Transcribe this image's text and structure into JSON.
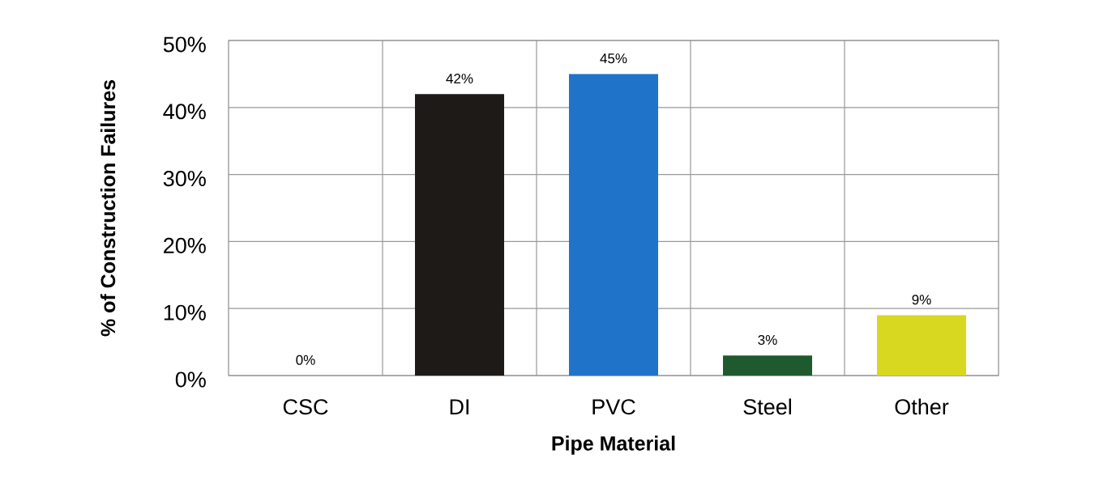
{
  "chart_data": {
    "type": "bar",
    "xlabel": "Pipe Material",
    "ylabel": "% of Construction Failures",
    "categories": [
      "CSC",
      "DI",
      "PVC",
      "Steel",
      "Other"
    ],
    "values": [
      0,
      42,
      45,
      3,
      9
    ],
    "colors": [
      "#1e1a17",
      "#1e1a17",
      "#1f73c8",
      "#1f5a2e",
      "#d8d820"
    ],
    "value_labels": [
      "0%",
      "42%",
      "45%",
      "3%",
      "9%"
    ],
    "ylim": [
      0,
      50
    ],
    "yticks": [
      {
        "value": 0,
        "label": "0%"
      },
      {
        "value": 10,
        "label": "10%"
      },
      {
        "value": 20,
        "label": "20%"
      },
      {
        "value": 30,
        "label": "30%"
      },
      {
        "value": 40,
        "label": "40%"
      },
      {
        "value": 50,
        "label": "50%"
      }
    ],
    "grid": true
  }
}
